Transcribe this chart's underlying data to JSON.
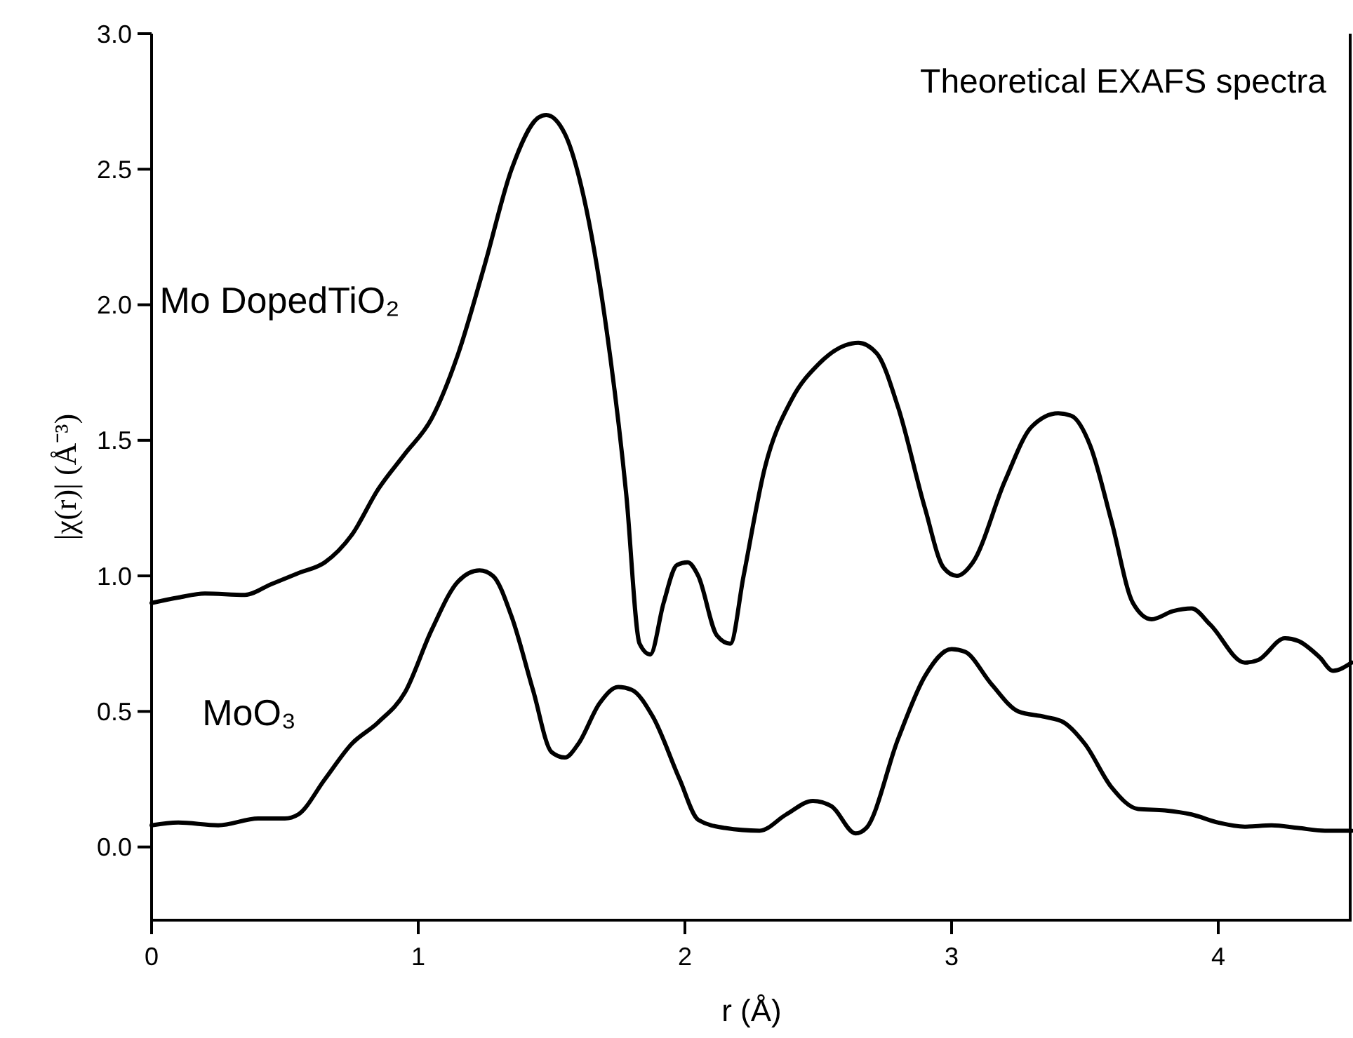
{
  "chart_data": {
    "type": "line",
    "title": "Theoretical EXAFS spectra",
    "xlabel": "r (Å)",
    "ylabel": "|χ(r)| (Å⁻³)",
    "xlim": [
      0,
      4.5
    ],
    "ylim": [
      -0.27,
      3.0
    ],
    "xticks": [
      0,
      1,
      2,
      3,
      4
    ],
    "yticks": [
      {
        "value": 0,
        "label": "0.0"
      },
      {
        "value": 0.5,
        "label": "0.5"
      },
      {
        "value": 1,
        "label": "1.0"
      },
      {
        "value": 1.5,
        "label": "1.5"
      },
      {
        "value": 2,
        "label": "2.0"
      },
      {
        "value": 2.5,
        "label": "2.5"
      },
      {
        "value": 3,
        "label": "3.0"
      }
    ],
    "legend": false,
    "grid": false,
    "marker": "none",
    "line_style": "solid",
    "series": [
      {
        "name": "Mo DopedTiO₂",
        "color": "#000000",
        "x": [
          0,
          0.1,
          0.2,
          0.35,
          0.45,
          0.55,
          0.65,
          0.75,
          0.85,
          0.95,
          1.05,
          1.15,
          1.25,
          1.35,
          1.45,
          1.48,
          1.55,
          1.62,
          1.7,
          1.78,
          1.83,
          1.87,
          1.92,
          1.97,
          2.01,
          2.05,
          2.12,
          2.17,
          2.22,
          2.3,
          2.4,
          2.5,
          2.6,
          2.65,
          2.72,
          2.8,
          2.9,
          2.97,
          3.02,
          3.08,
          3.2,
          3.3,
          3.4,
          3.45,
          3.52,
          3.6,
          3.68,
          3.75,
          3.83,
          3.9,
          3.97,
          4.1,
          4.15,
          4.25,
          4.3,
          4.38,
          4.43,
          4.5
        ],
        "values": [
          0.9,
          0.92,
          0.935,
          0.93,
          0.97,
          1.01,
          1.05,
          1.15,
          1.32,
          1.45,
          1.58,
          1.82,
          2.15,
          2.5,
          2.69,
          2.7,
          2.63,
          2.4,
          1.95,
          1.3,
          0.75,
          0.71,
          0.9,
          1.04,
          1.05,
          1.0,
          0.78,
          0.75,
          1.0,
          1.4,
          1.65,
          1.78,
          1.85,
          1.86,
          1.82,
          1.62,
          1.25,
          1.03,
          1.0,
          1.05,
          1.35,
          1.55,
          1.6,
          1.59,
          1.48,
          1.2,
          0.9,
          0.84,
          0.87,
          0.88,
          0.82,
          0.68,
          0.69,
          0.77,
          0.76,
          0.7,
          0.65,
          0.68
        ]
      },
      {
        "name": "MoO₃",
        "color": "#000000",
        "x": [
          0,
          0.1,
          0.25,
          0.4,
          0.5,
          0.55,
          0.65,
          0.75,
          0.85,
          0.95,
          1.05,
          1.15,
          1.23,
          1.28,
          1.35,
          1.43,
          1.5,
          1.55,
          1.6,
          1.68,
          1.75,
          1.8,
          1.88,
          1.98,
          2.05,
          2.15,
          2.28,
          2.38,
          2.48,
          2.55,
          2.64,
          2.68,
          2.8,
          2.9,
          3.0,
          3.05,
          3.15,
          3.25,
          3.35,
          3.42,
          3.5,
          3.6,
          3.7,
          3.8,
          3.9,
          4.0,
          4.1,
          4.2,
          4.3,
          4.4,
          4.5
        ],
        "values": [
          0.08,
          0.09,
          0.08,
          0.105,
          0.105,
          0.12,
          0.25,
          0.38,
          0.46,
          0.57,
          0.8,
          0.98,
          1.02,
          1.0,
          0.85,
          0.58,
          0.35,
          0.33,
          0.38,
          0.53,
          0.59,
          0.58,
          0.48,
          0.25,
          0.1,
          0.07,
          0.06,
          0.12,
          0.17,
          0.15,
          0.05,
          0.07,
          0.4,
          0.63,
          0.73,
          0.72,
          0.6,
          0.5,
          0.48,
          0.46,
          0.38,
          0.22,
          0.14,
          0.135,
          0.12,
          0.09,
          0.075,
          0.08,
          0.07,
          0.06,
          0.06
        ]
      }
    ]
  }
}
